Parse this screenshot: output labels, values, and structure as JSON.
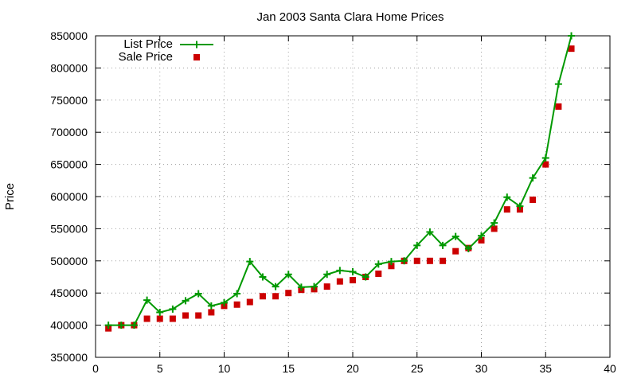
{
  "chart_data": {
    "type": "line",
    "title": "Jan 2003 Santa Clara Home Prices",
    "xlabel": "",
    "ylabel": "Price",
    "xlim": [
      0,
      40
    ],
    "ylim": [
      350000,
      850000
    ],
    "xticks": [
      0,
      5,
      10,
      15,
      20,
      25,
      30,
      35,
      40
    ],
    "yticks": [
      350000,
      400000,
      450000,
      500000,
      550000,
      600000,
      650000,
      700000,
      750000,
      800000,
      850000
    ],
    "grid": true,
    "legend_position": "top-left",
    "series": [
      {
        "name": "List Price",
        "style": "line+points",
        "color": "#009900",
        "x": [
          1,
          2,
          3,
          4,
          5,
          6,
          7,
          8,
          9,
          10,
          11,
          12,
          13,
          14,
          15,
          16,
          17,
          18,
          19,
          20,
          21,
          22,
          23,
          24,
          25,
          26,
          27,
          28,
          29,
          30,
          31,
          32,
          33,
          34,
          35,
          36,
          37
        ],
        "values": [
          400000,
          400000,
          400000,
          439000,
          420000,
          425000,
          438000,
          449000,
          430000,
          435000,
          449000,
          499000,
          475000,
          460000,
          479000,
          459000,
          460000,
          479000,
          485000,
          483000,
          475000,
          495000,
          499000,
          500000,
          524000,
          545000,
          524000,
          538000,
          519000,
          539000,
          559000,
          599000,
          585000,
          629000,
          660000,
          775000,
          850000
        ]
      },
      {
        "name": "Sale Price",
        "style": "points",
        "color": "#cc0000",
        "x": [
          1,
          2,
          3,
          4,
          5,
          6,
          7,
          8,
          9,
          10,
          11,
          12,
          13,
          14,
          15,
          16,
          17,
          18,
          19,
          20,
          21,
          22,
          23,
          24,
          25,
          26,
          27,
          28,
          29,
          30,
          31,
          32,
          33,
          34,
          35,
          36,
          37
        ],
        "values": [
          395000,
          400000,
          400000,
          410000,
          410000,
          410000,
          415000,
          415000,
          420000,
          430000,
          432000,
          436000,
          445000,
          445000,
          450000,
          455000,
          456000,
          460000,
          468000,
          470000,
          475000,
          480000,
          492000,
          500000,
          500000,
          500000,
          500000,
          515000,
          520000,
          532000,
          550000,
          580000,
          580000,
          595000,
          650000,
          740000,
          830000
        ]
      }
    ]
  }
}
